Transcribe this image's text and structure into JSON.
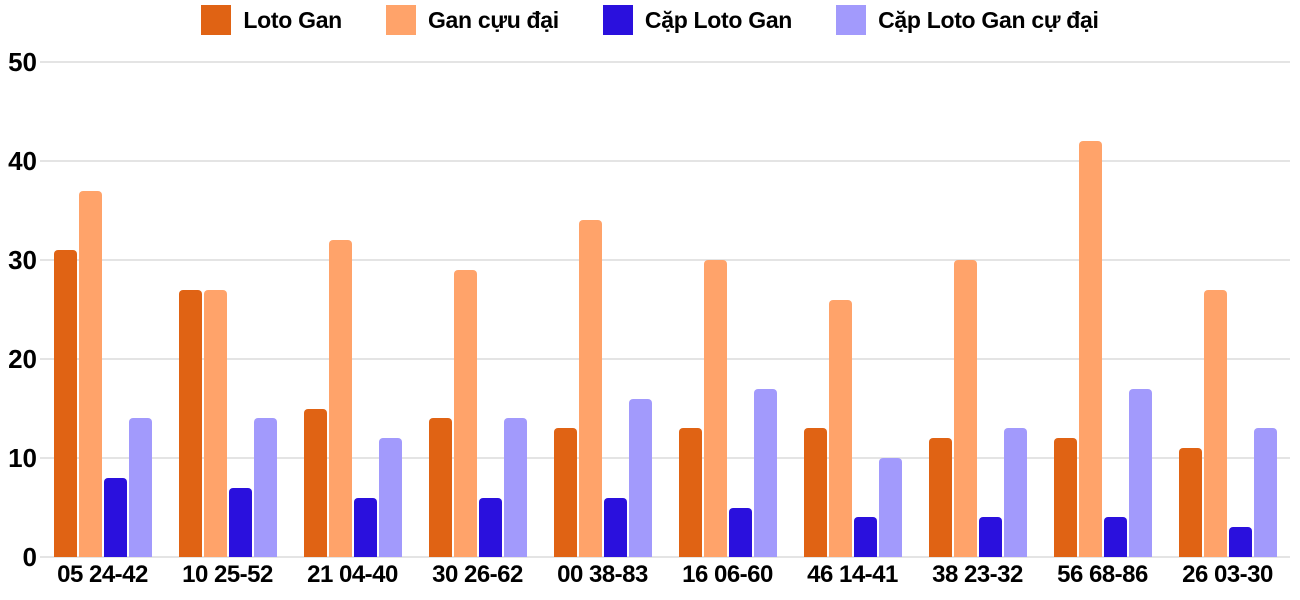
{
  "colors": {
    "background": "#ffffff",
    "grid": "#e4e4e4",
    "text": "#000000"
  },
  "chart_data": {
    "type": "bar",
    "title": "",
    "xlabel": "",
    "ylabel": "",
    "ylim": [
      0,
      50
    ],
    "yticks": [
      0,
      10,
      20,
      30,
      40,
      50
    ],
    "grid": true,
    "legend_position": "top",
    "categories": [
      "05 24-42",
      "10 25-52",
      "21 04-40",
      "30 26-62",
      "00 38-83",
      "16 06-60",
      "46 14-41",
      "38 23-32",
      "56 68-86",
      "26 03-30"
    ],
    "series": [
      {
        "name": "Loto Gan",
        "color": "#e06314",
        "values": [
          31,
          27,
          15,
          14,
          13,
          13,
          13,
          12,
          12,
          11
        ]
      },
      {
        "name": "Gan cựu đại",
        "color": "#ffa36a",
        "values": [
          37,
          27,
          32,
          29,
          34,
          30,
          26,
          30,
          42,
          27
        ]
      },
      {
        "name": "Cặp Loto Gan",
        "color": "#2a10dd",
        "values": [
          8,
          7,
          6,
          6,
          6,
          5,
          4,
          4,
          4,
          3
        ]
      },
      {
        "name": "Cặp Loto Gan cự đại",
        "color": "#a29afc",
        "values": [
          14,
          14,
          12,
          14,
          16,
          17,
          10,
          13,
          17,
          13
        ]
      }
    ]
  }
}
